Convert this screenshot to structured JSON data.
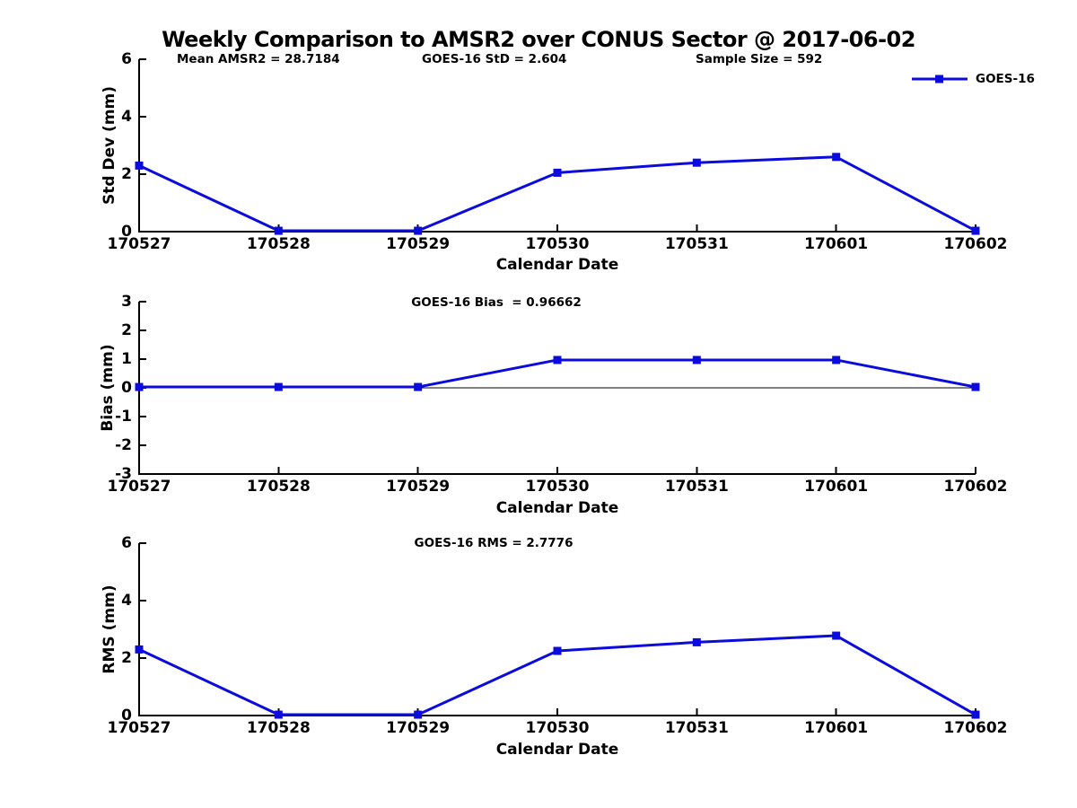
{
  "title": "Weekly Comparison to AMSR2 over CONUS Sector @ 2017-06-02",
  "annotations": {
    "mean_amsr2": "Mean AMSR2 = 28.7184",
    "goes16_std": "GOES-16 StD = 2.604",
    "sample_size": "Sample Size = 592"
  },
  "legend": {
    "label": "GOES-16",
    "color": "#0b0bdd"
  },
  "chart_data": [
    {
      "type": "line",
      "title": "",
      "ylabel": "Std Dev (mm)",
      "xlabel": "Calendar Date",
      "categories": [
        "170527",
        "170528",
        "170529",
        "170530",
        "170531",
        "170601",
        "170602"
      ],
      "series": [
        {
          "name": "GOES-16",
          "values": [
            2.3,
            0.03,
            0.03,
            2.05,
            2.4,
            2.6,
            0.03
          ]
        }
      ],
      "ylim": [
        0,
        6
      ],
      "yticks": [
        0,
        2,
        4,
        6
      ],
      "grid": false,
      "legend_position": "top-right",
      "marker": "square"
    },
    {
      "type": "line",
      "annotation": "GOES-16 Bias  = 0.96662",
      "ylabel": "Bias (mm)",
      "xlabel": "Calendar Date",
      "categories": [
        "170527",
        "170528",
        "170529",
        "170530",
        "170531",
        "170601",
        "170602"
      ],
      "series": [
        {
          "name": "GOES-16",
          "values": [
            0.03,
            0.03,
            0.03,
            0.97,
            0.97,
            0.97,
            0.03
          ]
        }
      ],
      "ylim": [
        -3,
        3
      ],
      "yticks": [
        -3,
        -2,
        -1,
        0,
        1,
        2,
        3
      ],
      "zero_line": true,
      "grid": false,
      "marker": "square"
    },
    {
      "type": "line",
      "annotation": "GOES-16 RMS = 2.7776",
      "ylabel": "RMS (mm)",
      "xlabel": "Calendar Date",
      "categories": [
        "170527",
        "170528",
        "170529",
        "170530",
        "170531",
        "170601",
        "170602"
      ],
      "series": [
        {
          "name": "GOES-16",
          "values": [
            2.3,
            0.03,
            0.03,
            2.25,
            2.55,
            2.78,
            0.03
          ]
        }
      ],
      "ylim": [
        0,
        6
      ],
      "yticks": [
        0,
        2,
        4,
        6
      ],
      "grid": false,
      "marker": "square"
    }
  ]
}
